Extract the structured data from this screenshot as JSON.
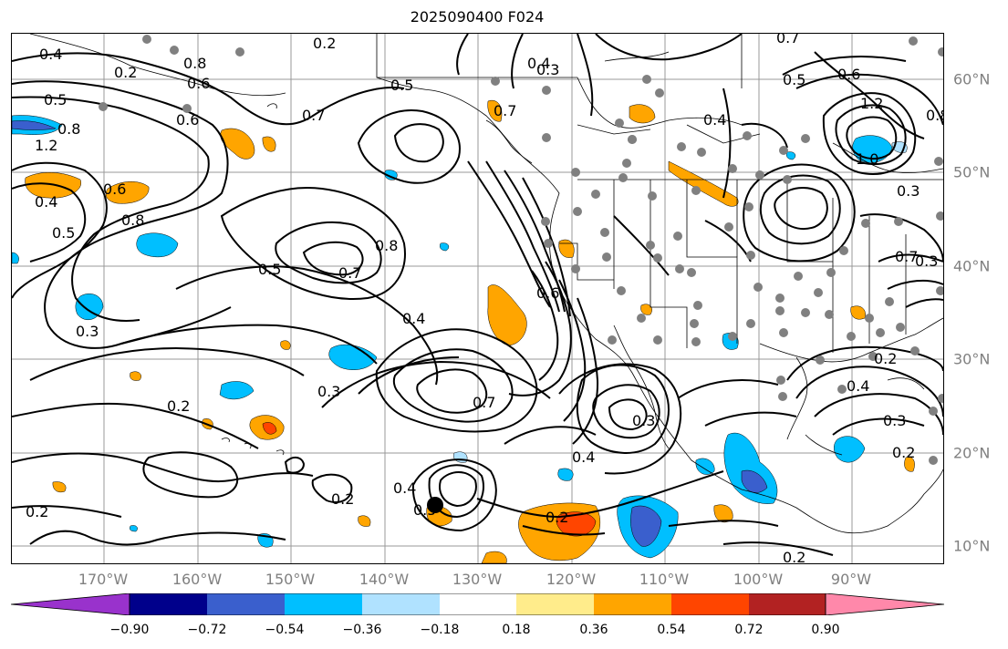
{
  "title": "2025090400 F024",
  "lon_labels": [
    "170°W",
    "160°W",
    "150°W",
    "140°W",
    "130°W",
    "120°W",
    "110°W",
    "100°W",
    "90°W"
  ],
  "lat_labels": [
    "60°N",
    "50°N",
    "40°N",
    "30°N",
    "20°N",
    "10°N"
  ],
  "contour_labels": [
    "0.4",
    "0.2",
    "0.8",
    "0.6",
    "0.2",
    "0.5",
    "1.2",
    "0.8",
    "0.6",
    "0.5",
    "0.4",
    "0.5",
    "0.6",
    "0.8",
    "0.7",
    "0.3",
    "0.7",
    "0.8",
    "0.7",
    "0.5",
    "0.4",
    "0.3",
    "0.2",
    "0.3",
    "0.7",
    "0.4",
    "0.5",
    "0.2",
    "0.4",
    "0.2",
    "0.2",
    "0.4",
    "0.2",
    "0.3",
    "0.2",
    "0.4",
    "0.7",
    "0.5",
    "0.6",
    "0.8",
    "1.2",
    "1.0",
    "0.4",
    "0.3",
    "0.7",
    "0.3",
    "0.2",
    "0.3",
    "0.6"
  ],
  "colorbar": {
    "colors": [
      "#9932cc",
      "#00008b",
      "#3a5fcd",
      "#00bfff",
      "#b0e2ff",
      "#ffffff",
      "#ffec8b",
      "#ffa500",
      "#ff4500",
      "#b22222",
      "#ff88aa"
    ],
    "tick_labels": [
      "−0.90",
      "−0.72",
      "−0.54",
      "−0.36",
      "−0.18",
      "0.18",
      "0.36",
      "0.54",
      "0.72",
      "0.90"
    ]
  }
}
